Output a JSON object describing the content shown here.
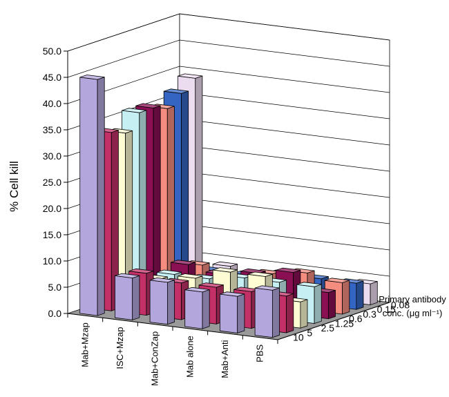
{
  "chart_data": {
    "type": "bar3d",
    "ylabel": "% Cell kill",
    "ylim": [
      0,
      50
    ],
    "yticks": [
      "0.0",
      "5.0",
      "10.0",
      "15.0",
      "20.0",
      "25.0",
      "30.0",
      "35.0",
      "40.0",
      "45.0",
      "50.0"
    ],
    "categories": [
      "Mab+Mzap",
      "ISC+Mzap",
      "Mab+ConZap",
      "Mab alone",
      "Mab+Anti",
      "PBS"
    ],
    "depth_title_line1": "Primary antibody",
    "depth_title_line2": "conc. (μg ml⁻¹)",
    "series": [
      {
        "name": "10",
        "color": "#b3a6dd",
        "values": [
          45.0,
          8.0,
          8.0,
          7.0,
          7.0,
          9.0
        ]
      },
      {
        "name": "5",
        "color": "#c33068",
        "values": [
          34.0,
          8.0,
          7.0,
          7.0,
          7.0,
          7.0
        ]
      },
      {
        "name": "2.5",
        "color": "#fdfcd2",
        "values": [
          33.0,
          6.0,
          7.0,
          9.0,
          9.0,
          5.0
        ]
      },
      {
        "name": "1.25",
        "color": "#c6eff3",
        "values": [
          36.0,
          6.0,
          6.0,
          7.0,
          7.0,
          7.0
        ]
      },
      {
        "name": "0.6",
        "color": "#8a0f53",
        "values": [
          36.0,
          7.0,
          6.0,
          7.0,
          8.0,
          5.0
        ]
      },
      {
        "name": "0.3",
        "color": "#f48c80",
        "values": [
          35.0,
          6.0,
          4.0,
          6.0,
          7.0,
          6.0
        ]
      },
      {
        "name": "0.15",
        "color": "#3565c3",
        "values": [
          37.0,
          4.0,
          4.0,
          5.0,
          5.0,
          5.0
        ]
      },
      {
        "name": "0.08",
        "color": "#ecdcf0",
        "values": [
          39.0,
          4.0,
          3.0,
          3.0,
          3.0,
          4.0
        ]
      }
    ]
  }
}
